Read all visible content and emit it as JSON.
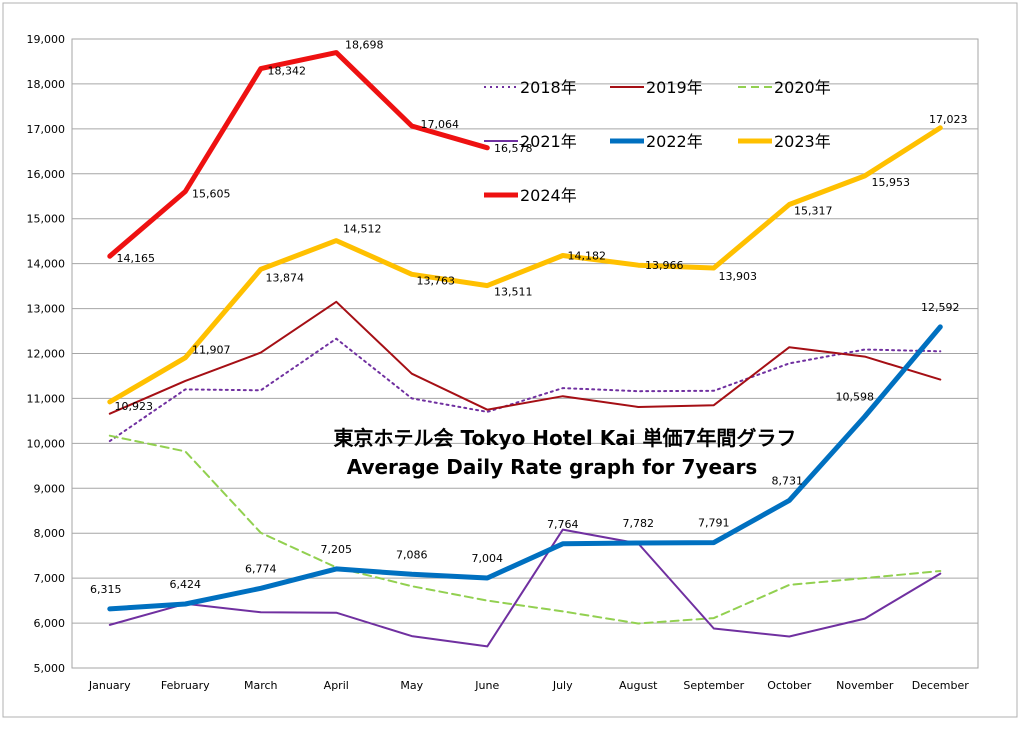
{
  "chart_data": {
    "type": "line",
    "title": "東京ホテル会  Tokyo Hotel Kai  単価7年間グラフ",
    "subtitle": "Average Daily Rate graph for 7years",
    "xlabel": "",
    "ylabel": "",
    "categories": [
      "January",
      "February",
      "March",
      "April",
      "May",
      "June",
      "July",
      "August",
      "September",
      "October",
      "November",
      "December"
    ],
    "ylim": [
      5000,
      19000
    ],
    "yticks": [
      "5,000",
      "6,000",
      "7,000",
      "8,000",
      "9,000",
      "10,000",
      "11,000",
      "12,000",
      "13,000",
      "14,000",
      "15,000",
      "16,000",
      "17,000",
      "18,000",
      "19,000"
    ],
    "grid": true,
    "legend_position": "top-right",
    "series": [
      {
        "name": "2018年",
        "color": "#7030A0",
        "dash": "dot",
        "width": 2,
        "values": [
          10050,
          11200,
          11180,
          12330,
          11000,
          10700,
          11230,
          11160,
          11170,
          11780,
          12090,
          12050
        ],
        "labels": []
      },
      {
        "name": "2019年",
        "color": "#A50F15",
        "dash": "solid",
        "width": 2,
        "values": [
          10660,
          11390,
          12020,
          13150,
          11550,
          10750,
          11050,
          10810,
          10850,
          12140,
          11930,
          11420
        ],
        "labels": []
      },
      {
        "name": "2020年",
        "color": "#92D050",
        "dash": "dash",
        "width": 2,
        "values": [
          10170,
          9820,
          8010,
          7240,
          6820,
          6500,
          6260,
          5990,
          6110,
          6850,
          7000,
          7160
        ],
        "labels": []
      },
      {
        "name": "2021年",
        "color": "#7030A0",
        "dash": "solid",
        "width": 2,
        "values": [
          5960,
          6430,
          6240,
          6230,
          5710,
          5480,
          8080,
          7770,
          5880,
          5700,
          6100,
          7100
        ],
        "labels": []
      },
      {
        "name": "2022年",
        "color": "#0070C0",
        "dash": "solid",
        "width": 5,
        "values": [
          6315,
          6424,
          6774,
          7205,
          7086,
          7004,
          7764,
          7782,
          7791,
          8731,
          10598,
          12592
        ],
        "labels": [
          "6,315",
          "6,424",
          "6,774",
          "7,205",
          "7,086",
          "7,004",
          "7,764",
          "7,782",
          "7,791",
          "8,731",
          "10,598",
          "12,592"
        ]
      },
      {
        "name": "2023年",
        "color": "#FFC000",
        "dash": "solid",
        "width": 5,
        "values": [
          10923,
          11907,
          13874,
          14512,
          13763,
          13511,
          14182,
          13966,
          13903,
          15317,
          15953,
          17023
        ],
        "labels": [
          "10,923",
          "11,907",
          "13,874",
          "14,512",
          "13,763",
          "13,511",
          "14,182",
          "13,966",
          "13,903",
          "15,317",
          "15,953",
          "17,023"
        ]
      },
      {
        "name": "2024年",
        "color": "#EE1111",
        "dash": "solid",
        "width": 5,
        "values": [
          14165,
          15605,
          18342,
          18698,
          17064,
          16578,
          null,
          null,
          null,
          null,
          null,
          null
        ],
        "labels": [
          "14,165",
          "15,605",
          "18,342",
          "18,698",
          "17,064",
          "16,578"
        ]
      }
    ]
  }
}
